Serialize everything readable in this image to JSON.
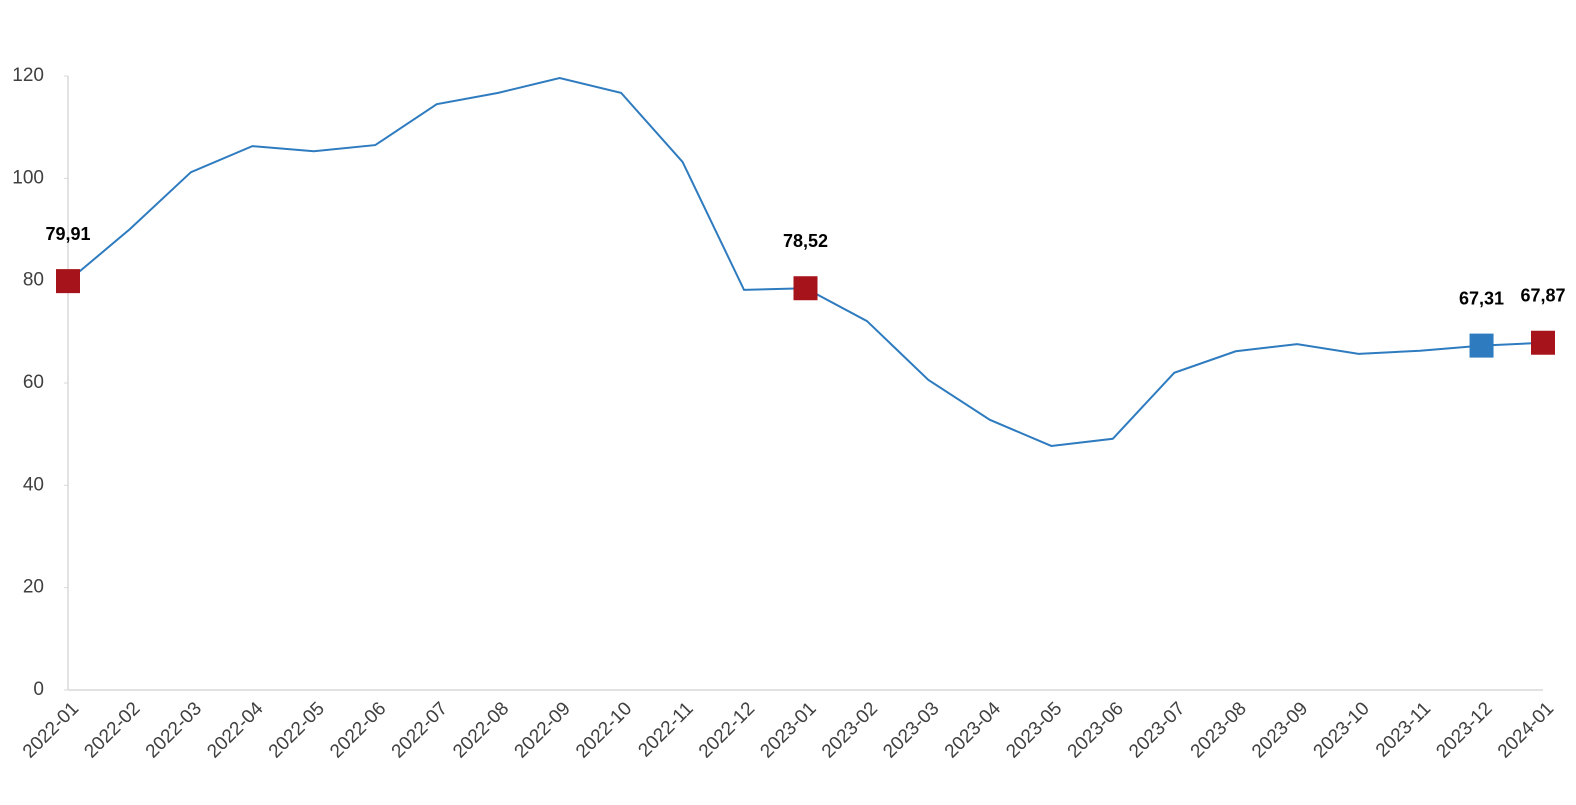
{
  "chart_data": {
    "type": "line",
    "categories": [
      "2022-01",
      "2022-02",
      "2022-03",
      "2022-04",
      "2022-05",
      "2022-06",
      "2022-07",
      "2022-08",
      "2022-09",
      "2022-10",
      "2022-11",
      "2022-12",
      "2023-01",
      "2023-02",
      "2023-03",
      "2023-04",
      "2023-05",
      "2023-06",
      "2023-07",
      "2023-08",
      "2023-09",
      "2023-10",
      "2023-11",
      "2023-12",
      "2024-01"
    ],
    "series": [
      {
        "color": "#2e7bbf",
        "values": [
          79.91,
          90,
          101.2,
          106.3,
          105.3,
          106.5,
          114.5,
          116.7,
          119.6,
          116.7,
          103.2,
          78.2,
          78.52,
          72.1,
          60.6,
          52.8,
          47.7,
          49.1,
          62.0,
          66.2,
          67.6,
          65.7,
          66.3,
          67.31,
          67.87
        ],
        "value_labels": [
          "79,91",
          null,
          null,
          null,
          null,
          null,
          null,
          null,
          null,
          null,
          null,
          null,
          "78,52",
          null,
          null,
          null,
          null,
          null,
          null,
          null,
          null,
          null,
          null,
          "67,31",
          "67,87"
        ],
        "marker_colors": [
          "#a6131a",
          null,
          null,
          null,
          null,
          null,
          null,
          null,
          null,
          null,
          null,
          null,
          "#a6131a",
          null,
          null,
          null,
          null,
          null,
          null,
          null,
          null,
          null,
          null,
          "#2e7bbf",
          "#a6131a"
        ]
      }
    ],
    "ylim": [
      0,
      120
    ],
    "yticks": [
      0,
      20,
      40,
      60,
      80,
      100,
      120
    ],
    "grid": false
  }
}
